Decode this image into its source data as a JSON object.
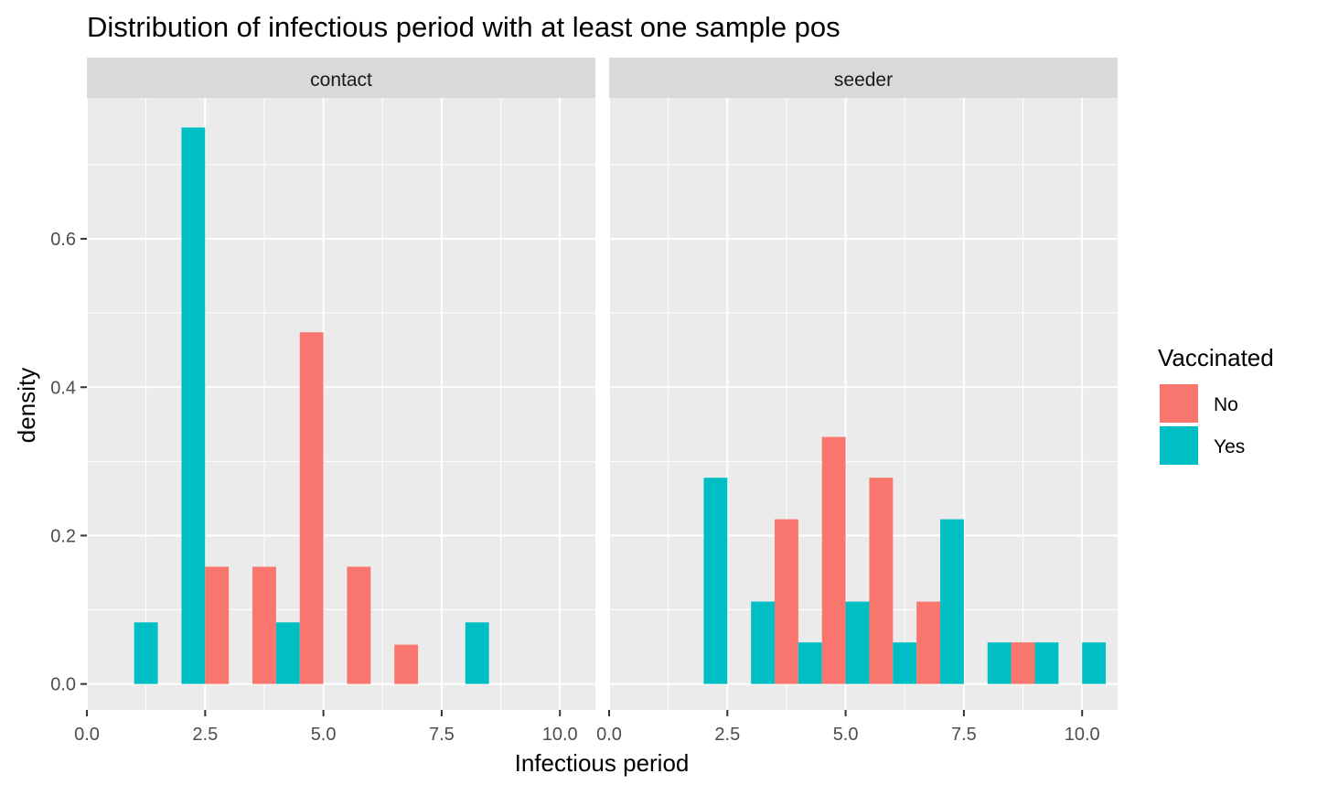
{
  "chart_data": {
    "type": "bar",
    "title": "Distribution of infectious period with at least one sample pos",
    "xlabel": "Infectious period",
    "ylabel": "density",
    "xlim": [
      0,
      10.75
    ],
    "ylim": [
      -0.035,
      0.79
    ],
    "x_ticks": [
      0.0,
      2.5,
      5.0,
      7.5,
      10.0
    ],
    "x_tick_labels": [
      "0.0",
      "2.5",
      "5.0",
      "7.5",
      "10.0"
    ],
    "y_ticks": [
      0.0,
      0.2,
      0.4,
      0.6
    ],
    "y_tick_labels": [
      "0.0",
      "0.2",
      "0.4",
      "0.6"
    ],
    "grid": true,
    "bar_width": 0.5,
    "legend": {
      "title": "Vaccinated",
      "position": "right",
      "items": [
        {
          "label": "No",
          "color": "#F8766D"
        },
        {
          "label": "Yes",
          "color": "#00BFC4"
        }
      ]
    },
    "panels": [
      {
        "strip": "contact",
        "bars": [
          {
            "group": "Yes",
            "x": 1.25,
            "value": 0.083
          },
          {
            "group": "Yes",
            "x": 2.25,
            "value": 0.75
          },
          {
            "group": "No",
            "x": 2.75,
            "value": 0.158
          },
          {
            "group": "No",
            "x": 3.75,
            "value": 0.158
          },
          {
            "group": "Yes",
            "x": 4.25,
            "value": 0.083
          },
          {
            "group": "No",
            "x": 4.75,
            "value": 0.474
          },
          {
            "group": "No",
            "x": 5.75,
            "value": 0.158
          },
          {
            "group": "No",
            "x": 6.75,
            "value": 0.053
          },
          {
            "group": "Yes",
            "x": 8.25,
            "value": 0.083
          }
        ]
      },
      {
        "strip": "seeder",
        "bars": [
          {
            "group": "Yes",
            "x": 2.25,
            "value": 0.278
          },
          {
            "group": "Yes",
            "x": 3.25,
            "value": 0.111
          },
          {
            "group": "No",
            "x": 3.75,
            "value": 0.222
          },
          {
            "group": "Yes",
            "x": 4.25,
            "value": 0.056
          },
          {
            "group": "No",
            "x": 4.75,
            "value": 0.333
          },
          {
            "group": "Yes",
            "x": 5.25,
            "value": 0.111
          },
          {
            "group": "No",
            "x": 5.75,
            "value": 0.278
          },
          {
            "group": "Yes",
            "x": 6.25,
            "value": 0.056
          },
          {
            "group": "No",
            "x": 6.75,
            "value": 0.111
          },
          {
            "group": "Yes",
            "x": 7.25,
            "value": 0.222
          },
          {
            "group": "Yes",
            "x": 8.25,
            "value": 0.056
          },
          {
            "group": "No",
            "x": 8.75,
            "value": 0.056
          },
          {
            "group": "Yes",
            "x": 9.25,
            "value": 0.056
          },
          {
            "group": "Yes",
            "x": 10.25,
            "value": 0.056
          }
        ]
      }
    ]
  }
}
